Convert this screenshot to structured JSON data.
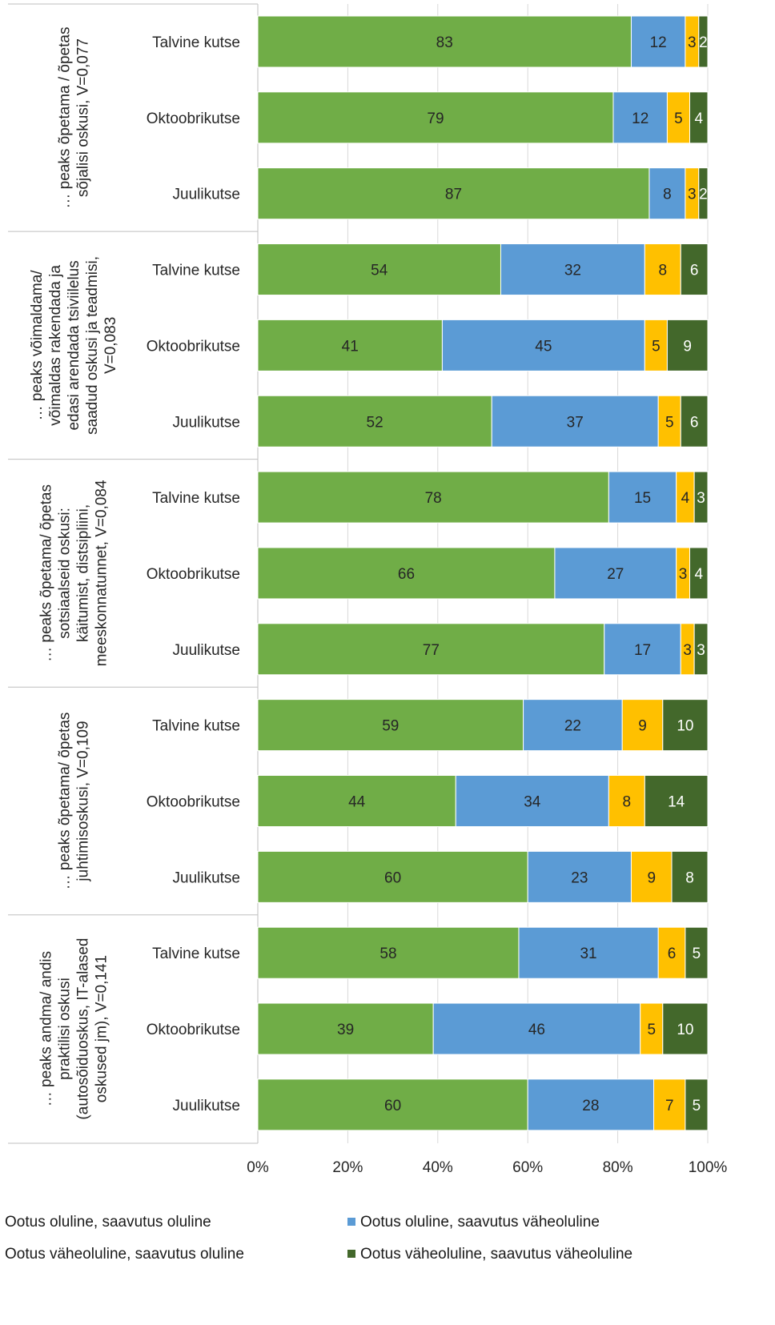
{
  "chart_data": {
    "type": "bar",
    "orientation": "horizontal",
    "stacked": "percent",
    "xlim": [
      0,
      100
    ],
    "x_ticks": [
      "0%",
      "20%",
      "40%",
      "60%",
      "80%",
      "100%"
    ],
    "series": [
      {
        "name": "Ootus oluline, saavutus oluline",
        "color": "#70AD47",
        "label_color": "#262626"
      },
      {
        "name": "Ootus oluline, saavutus väheoluline",
        "color": "#5B9BD5",
        "label_color": "#262626"
      },
      {
        "name": "Ootus väheoluline, saavutus oluline",
        "color": "#FFC000",
        "label_color": "#262626"
      },
      {
        "name": "Ootus väheoluline, saavutus väheoluline",
        "color": "#43682B",
        "label_color": "#ffffff"
      }
    ],
    "groups": [
      {
        "label_lines": [
          "… peaks õpetama / õpetas",
          "sõjalisi oskusi, V=0,077"
        ],
        "bars": [
          {
            "category": "Talvine kutse",
            "values": [
              83,
              12,
              3,
              2
            ]
          },
          {
            "category": "Oktoobrikutse",
            "values": [
              79,
              12,
              5,
              4
            ]
          },
          {
            "category": "Juulikutse",
            "values": [
              87,
              8,
              3,
              2
            ]
          }
        ]
      },
      {
        "label_lines": [
          "… peaks võimaldama/",
          "võimaldas rakendada ja",
          "edasi arendada tsiviilelus",
          "saadud oskusi ja teadmisi,",
          "V=0,083"
        ],
        "bars": [
          {
            "category": "Talvine kutse",
            "values": [
              54,
              32,
              8,
              6
            ]
          },
          {
            "category": "Oktoobrikutse",
            "values": [
              41,
              45,
              5,
              9
            ]
          },
          {
            "category": "Juulikutse",
            "values": [
              52,
              37,
              5,
              6
            ]
          }
        ]
      },
      {
        "label_lines": [
          "… peaks õpetama/ õpetas",
          "sotsiaalseid oskusi:",
          "käitumist, distsipliini,",
          "meeskonnatunnet, V=0,084"
        ],
        "bars": [
          {
            "category": "Talvine kutse",
            "values": [
              78,
              15,
              4,
              3
            ]
          },
          {
            "category": "Oktoobrikutse",
            "values": [
              66,
              27,
              3,
              4
            ]
          },
          {
            "category": "Juulikutse",
            "values": [
              77,
              17,
              3,
              3
            ]
          }
        ]
      },
      {
        "label_lines": [
          "… peaks õpetama/ õpetas",
          "juhtimisoskusi, V=0,109"
        ],
        "bars": [
          {
            "category": "Talvine kutse",
            "values": [
              59,
              22,
              9,
              10
            ]
          },
          {
            "category": "Oktoobrikutse",
            "values": [
              44,
              34,
              8,
              14
            ]
          },
          {
            "category": "Juulikutse",
            "values": [
              60,
              23,
              9,
              8
            ]
          }
        ]
      },
      {
        "label_lines": [
          "… peaks andma/ andis",
          "praktilisi oskusi",
          "(autosõiduoskus, IT-alased",
          "oskused jm), V=0,141"
        ],
        "bars": [
          {
            "category": "Talvine kutse",
            "values": [
              58,
              31,
              6,
              5
            ]
          },
          {
            "category": "Oktoobrikutse",
            "values": [
              39,
              46,
              5,
              10
            ]
          },
          {
            "category": "Juulikutse",
            "values": [
              60,
              28,
              7,
              5
            ]
          }
        ]
      }
    ],
    "grid": "vertical",
    "legend_position": "bottom"
  }
}
